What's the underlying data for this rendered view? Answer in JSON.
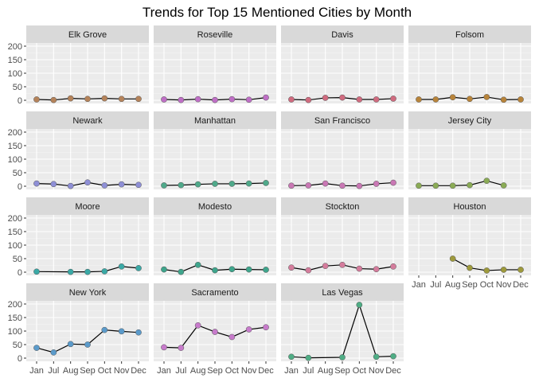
{
  "chart_data": {
    "type": "line",
    "title": "Trends for Top 15 Mentioned Cities by Month",
    "xlabel": "",
    "ylabel": "",
    "categories": [
      "Jan",
      "Jul",
      "Aug",
      "Sep",
      "Oct",
      "Nov",
      "Dec"
    ],
    "ylim": [
      0,
      200
    ],
    "yticks": [
      0,
      50,
      100,
      150,
      200
    ],
    "grid": true,
    "legend": "none",
    "panels": [
      {
        "name": "Elk Grove",
        "color": "#B5835A",
        "values": [
          3,
          1,
          7,
          5,
          7,
          5,
          5
        ]
      },
      {
        "name": "Roseville",
        "color": "#BF6FC6",
        "values": [
          3,
          1,
          4,
          1,
          4,
          2,
          10
        ]
      },
      {
        "name": "Davis",
        "color": "#D06B7F",
        "values": [
          3,
          1,
          9,
          10,
          3,
          3,
          6
        ]
      },
      {
        "name": "Folsom",
        "color": "#B8843A",
        "values": [
          3,
          3,
          11,
          5,
          12,
          2,
          3
        ]
      },
      {
        "name": "Newark",
        "color": "#8E8FD6",
        "values": [
          10,
          8,
          1,
          14,
          3,
          7,
          5
        ]
      },
      {
        "name": "Manhattan",
        "color": "#4FA98A",
        "values": [
          3,
          4,
          7,
          9,
          9,
          10,
          12
        ]
      },
      {
        "name": "San Francisco",
        "color": "#C977B4",
        "values": [
          2,
          3,
          10,
          2,
          1,
          9,
          13
        ]
      },
      {
        "name": "Jersey City",
        "color": "#8AAB55",
        "values": [
          2,
          2,
          2,
          4,
          20,
          3,
          null
        ]
      },
      {
        "name": "Moore",
        "color": "#3AA9A6",
        "values": [
          2,
          null,
          1,
          1,
          3,
          21,
          15
        ]
      },
      {
        "name": "Modesto",
        "color": "#3FA58C",
        "values": [
          10,
          1,
          27,
          7,
          11,
          10,
          9
        ]
      },
      {
        "name": "Stockton",
        "color": "#D47C9C",
        "values": [
          17,
          7,
          23,
          27,
          13,
          11,
          21
        ]
      },
      {
        "name": "Houston",
        "color": "#9E9A3C",
        "values": [
          null,
          null,
          50,
          16,
          6,
          9,
          9
        ]
      },
      {
        "name": "New York",
        "color": "#5B9BCB",
        "values": [
          38,
          21,
          52,
          50,
          104,
          99,
          95
        ]
      },
      {
        "name": "Sacramento",
        "color": "#C77BCB",
        "values": [
          40,
          38,
          121,
          97,
          78,
          106,
          114
        ]
      },
      {
        "name": "Las Vegas",
        "color": "#4FAD85",
        "values": [
          5,
          1,
          null,
          3,
          197,
          5,
          7
        ]
      }
    ]
  }
}
